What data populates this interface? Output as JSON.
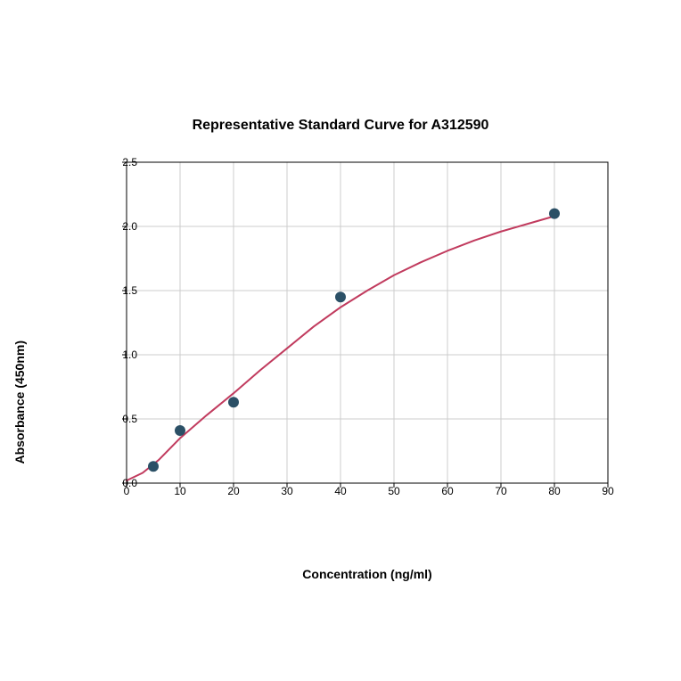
{
  "chart": {
    "type": "scatter-with-curve",
    "title": "Representative Standard Curve for A312590",
    "title_fontsize": 16,
    "xlabel": "Concentration (ng/ml)",
    "ylabel": "Absorbance (450nm)",
    "label_fontsize": 14,
    "tick_fontsize": 12,
    "background_color": "#ffffff",
    "plot_background_color": "#ffffff",
    "grid_color": "#cccccc",
    "axis_color": "#000000",
    "xlim": [
      0,
      90
    ],
    "ylim": [
      0,
      2.5
    ],
    "xticks": [
      0,
      10,
      20,
      30,
      40,
      50,
      60,
      70,
      80,
      90
    ],
    "yticks": [
      0.0,
      0.5,
      1.0,
      1.5,
      2.0,
      2.5
    ],
    "xtick_labels": [
      "0",
      "10",
      "20",
      "30",
      "40",
      "50",
      "60",
      "70",
      "80",
      "90"
    ],
    "ytick_labels": [
      "0.0",
      "0.5",
      "1.0",
      "1.5",
      "2.0",
      "2.5"
    ],
    "scatter": {
      "x": [
        5,
        10,
        20,
        40,
        80
      ],
      "y": [
        0.13,
        0.41,
        0.63,
        1.45,
        2.1
      ],
      "marker_color": "#2b5066",
      "marker_size": 6,
      "marker_style": "circle"
    },
    "curve": {
      "color": "#c13b5e",
      "line_width": 2,
      "points_x": [
        0,
        3,
        6,
        10,
        15,
        20,
        25,
        30,
        35,
        40,
        45,
        50,
        55,
        60,
        65,
        70,
        75,
        80
      ],
      "points_y": [
        0.02,
        0.08,
        0.18,
        0.35,
        0.53,
        0.7,
        0.88,
        1.05,
        1.22,
        1.37,
        1.5,
        1.62,
        1.72,
        1.81,
        1.89,
        1.96,
        2.02,
        2.08
      ]
    }
  }
}
